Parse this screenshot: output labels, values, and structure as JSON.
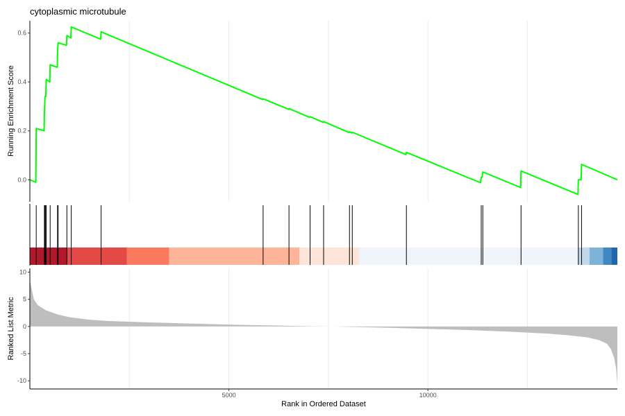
{
  "chart_data": {
    "type": "line",
    "title": "cytoplasmic microtubule",
    "x_range": [
      0,
      14760
    ],
    "xlabel": "Rank in Ordered Dataset",
    "x_ticks": [
      5000,
      10000
    ],
    "x_tick_labels": [
      "5000",
      "10000"
    ],
    "x_gridlines": [
      2500,
      5000,
      7500,
      10000,
      12500
    ],
    "grid": "vertical major and minor lines",
    "legend": "none",
    "panels": [
      {
        "name": "running-enrichment",
        "ylabel": "Running Enrichment Score",
        "y_range": [
          -0.09,
          0.65
        ],
        "y_ticks": [
          0.0,
          0.2,
          0.4,
          0.6
        ],
        "y_tick_labels": [
          "0.0",
          "0.2",
          "0.4",
          "0.6"
        ],
        "series": [
          {
            "color": "#00ff00",
            "points": [
              [
                0,
                0.0
              ],
              [
                150,
                -0.01
              ],
              [
                155,
                0.1
              ],
              [
                160,
                0.21
              ],
              [
                360,
                0.2
              ],
              [
                365,
                0.27
              ],
              [
                380,
                0.34
              ],
              [
                400,
                0.34
              ],
              [
                410,
                0.41
              ],
              [
                500,
                0.4
              ],
              [
                510,
                0.47
              ],
              [
                690,
                0.46
              ],
              [
                695,
                0.52
              ],
              [
                710,
                0.56
              ],
              [
                920,
                0.55
              ],
              [
                930,
                0.59
              ],
              [
                1030,
                0.58
              ],
              [
                1040,
                0.625
              ],
              [
                1780,
                0.575
              ],
              [
                1790,
                0.605
              ],
              [
                5850,
                0.328
              ],
              [
                5860,
                0.331
              ],
              [
                6500,
                0.288
              ],
              [
                6510,
                0.291
              ],
              [
                7030,
                0.255
              ],
              [
                7040,
                0.258
              ],
              [
                7370,
                0.235
              ],
              [
                7380,
                0.238
              ],
              [
                8020,
                0.193
              ],
              [
                8030,
                0.196
              ],
              [
                8090,
                0.191
              ],
              [
                8100,
                0.194
              ],
              [
                9450,
                0.103
              ],
              [
                9460,
                0.112
              ],
              [
                11320,
                -0.012
              ],
              [
                11340,
                0.01
              ],
              [
                11360,
                0.01
              ],
              [
                11380,
                0.032
              ],
              [
                12330,
                -0.032
              ],
              [
                12340,
                0.036
              ],
              [
                13770,
                -0.06
              ],
              [
                13780,
                0.0
              ],
              [
                13850,
                0.0
              ],
              [
                13860,
                0.063
              ],
              [
                14760,
                0.0
              ]
            ]
          }
        ]
      },
      {
        "name": "gene-hits",
        "hits": [
          160,
          365,
          380,
          400,
          410,
          510,
          695,
          710,
          930,
          1040,
          1790,
          5860,
          6510,
          7040,
          7380,
          8030,
          8100,
          9460,
          11340,
          11380,
          12340,
          13780,
          13860
        ]
      },
      {
        "name": "rank-color-bar",
        "segments": [
          {
            "start": 0,
            "end": 940,
            "color": "#b2182b"
          },
          {
            "start": 940,
            "end": 2440,
            "color": "#e34a46"
          },
          {
            "start": 2440,
            "end": 3500,
            "color": "#fb7a5e"
          },
          {
            "start": 3500,
            "end": 6770,
            "color": "#fdb499"
          },
          {
            "start": 6770,
            "end": 8270,
            "color": "#fde4d8"
          },
          {
            "start": 8270,
            "end": 13770,
            "color": "#eff4fb"
          },
          {
            "start": 13770,
            "end": 14060,
            "color": "#c2d8ea"
          },
          {
            "start": 14060,
            "end": 14400,
            "color": "#7eb3d8"
          },
          {
            "start": 14400,
            "end": 14610,
            "color": "#4088c2"
          },
          {
            "start": 14610,
            "end": 14760,
            "color": "#2166ac"
          }
        ]
      },
      {
        "name": "ranked-list-metric",
        "ylabel": "Ranked List Metric",
        "y_range": [
          -11.5,
          10.7
        ],
        "y_ticks": [
          10,
          5,
          0,
          -5,
          -10
        ],
        "y_tick_labels": [
          "10",
          "5",
          "0",
          "-5",
          "-10"
        ],
        "fill_color": "#bebebe",
        "series": [
          {
            "points": [
              [
                0,
                8.5
              ],
              [
                100,
                5.0
              ],
              [
                200,
                3.9
              ],
              [
                400,
                3.0
              ],
              [
                700,
                2.2
              ],
              [
                1000,
                1.7
              ],
              [
                1500,
                1.25
              ],
              [
                2000,
                1.0
              ],
              [
                3000,
                0.75
              ],
              [
                4000,
                0.55
              ],
              [
                5000,
                0.35
              ],
              [
                6000,
                0.2
              ],
              [
                7000,
                0.05
              ],
              [
                7600,
                0.0
              ],
              [
                8000,
                -0.07
              ],
              [
                9000,
                -0.25
              ],
              [
                10000,
                -0.45
              ],
              [
                11000,
                -0.65
              ],
              [
                12000,
                -0.95
              ],
              [
                13000,
                -1.3
              ],
              [
                13500,
                -1.6
              ],
              [
                14000,
                -2.0
              ],
              [
                14300,
                -2.5
              ],
              [
                14500,
                -3.2
              ],
              [
                14600,
                -4.2
              ],
              [
                14680,
                -5.8
              ],
              [
                14730,
                -7.8
              ],
              [
                14760,
                -10.8
              ]
            ]
          }
        ]
      }
    ]
  }
}
